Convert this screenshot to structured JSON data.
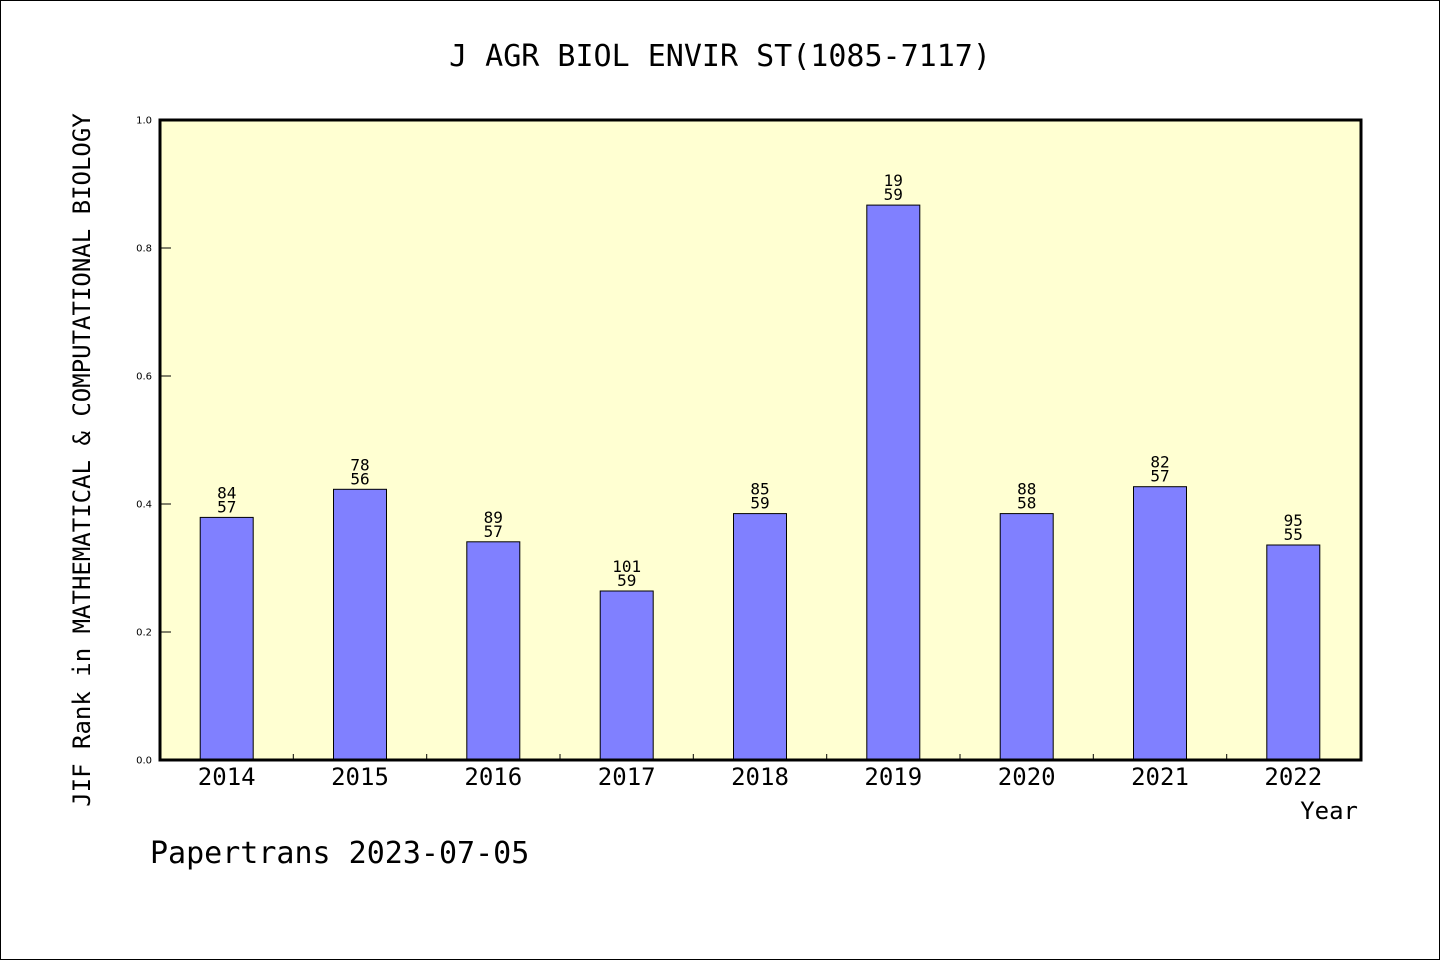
{
  "chart_data": {
    "type": "bar",
    "title": "J AGR BIOL ENVIR ST(1085-7117)",
    "ylabel": "JIF Rank in MATHEMATICAL & COMPUTATIONAL BIOLOGY",
    "xlabel": "Year",
    "credit": "Papertrans 2023-07-05",
    "ylim": [
      0,
      1.0
    ],
    "yticks": [
      "0.0",
      "0.2",
      "0.4",
      "0.6",
      "0.8",
      "1.0"
    ],
    "categories": [
      "2014",
      "2015",
      "2016",
      "2017",
      "2018",
      "2019",
      "2020",
      "2021",
      "2022"
    ],
    "values": [
      0.379,
      0.423,
      0.341,
      0.264,
      0.385,
      0.867,
      0.385,
      0.427,
      0.336
    ],
    "bar_labels": [
      [
        "84",
        "57"
      ],
      [
        "78",
        "56"
      ],
      [
        "89",
        "57"
      ],
      [
        "101",
        "59"
      ],
      [
        "85",
        "59"
      ],
      [
        "19",
        "59"
      ],
      [
        "88",
        "58"
      ],
      [
        "82",
        "57"
      ],
      [
        "95",
        "55"
      ]
    ],
    "grid": false,
    "colors": {
      "plot_background": "#ffffd2",
      "bar_fill": "#8080ff",
      "bar_stroke": "#000000"
    }
  }
}
